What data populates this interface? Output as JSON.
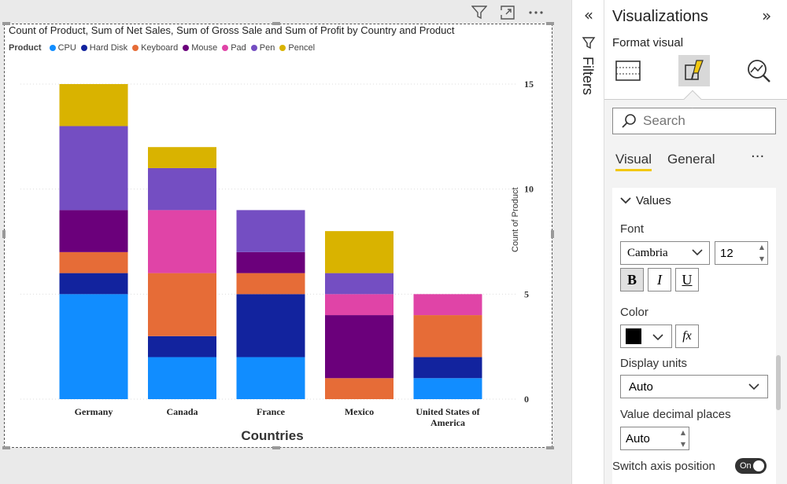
{
  "chart_data": {
    "type": "bar",
    "stacked": true,
    "title": "Count of Product, Sum of Net Sales, Sum of Gross Sale and Sum of Profit by Country and Product",
    "legend_title": "Product",
    "legend_position": "top-left",
    "categories": [
      "Germany",
      "Canada",
      "France",
      "Mexico",
      "United States of America"
    ],
    "series": [
      {
        "name": "CPU",
        "color": "#118DFF",
        "values": [
          5,
          2,
          2,
          0,
          1
        ]
      },
      {
        "name": "Hard Disk",
        "color": "#12239E",
        "values": [
          1,
          1,
          3,
          0,
          1
        ]
      },
      {
        "name": "Keyboard",
        "color": "#E66C37",
        "values": [
          1,
          3,
          1,
          1,
          2
        ]
      },
      {
        "name": "Mouse",
        "color": "#6B007B",
        "values": [
          2,
          0,
          1,
          3,
          0
        ]
      },
      {
        "name": "Pad",
        "color": "#E044A7",
        "values": [
          0,
          3,
          0,
          1,
          1
        ]
      },
      {
        "name": "Pen",
        "color": "#744EC2",
        "values": [
          4,
          2,
          2,
          1,
          0
        ]
      },
      {
        "name": "Pencel",
        "color": "#D9B300",
        "values": [
          2,
          1,
          0,
          2,
          0
        ]
      }
    ],
    "xlabel": "Countries",
    "ylabel": "Count of Product",
    "y_axis_position": "right",
    "ylim": [
      0,
      15
    ],
    "yticks": [
      0,
      5,
      10,
      15
    ],
    "grid": true
  },
  "filters": {
    "label": "Filters"
  },
  "viz_pane": {
    "title": "Visualizations",
    "subtitle": "Format visual",
    "search_placeholder": "Search",
    "tabs": {
      "visual": "Visual",
      "general": "General"
    },
    "section": "Values",
    "font_label": "Font",
    "font_family": "Cambria",
    "font_size": "12",
    "bold": "B",
    "italic": "I",
    "underline": "U",
    "color_label": "Color",
    "color_value": "#000000",
    "fx": "fx",
    "display_units_label": "Display units",
    "display_units_value": "Auto",
    "decimal_label": "Value decimal places",
    "decimal_value": "Auto",
    "switch_label": "Switch axis position",
    "switch_value": "On"
  }
}
